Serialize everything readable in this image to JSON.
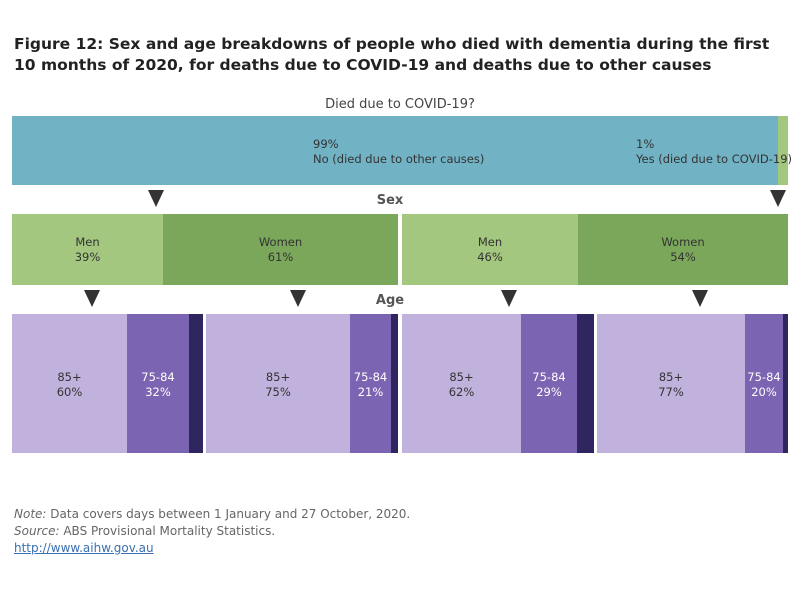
{
  "title": "Figure 12: Sex and age breakdowns of people who died with dementia during the first 10 months of 2020, for deaths due to COVID-19 and deaths due to other causes",
  "colors": {
    "covid_no": "#72b2c5",
    "covid_yes": "#a3c77e",
    "men": "#a3c77e",
    "women": "#7ba75a",
    "age_85": "#c1b2dd",
    "age_75": "#7b64b1",
    "age_young": "#2f2660"
  },
  "chart_data": {
    "type": "bar",
    "levels": [
      {
        "header": "Died due to COVID-19?",
        "segments": [
          {
            "name": "No (died due to other causes)",
            "pct_label": "99%",
            "value": 99
          },
          {
            "name": "Yes (died due to COVID-19)",
            "pct_label": "1%",
            "value": 1
          }
        ]
      },
      {
        "header": "Sex",
        "groups": [
          {
            "parent": "No (died due to other causes)",
            "segments": [
              {
                "name": "Men",
                "pct_label": "39%",
                "value": 39
              },
              {
                "name": "Women",
                "pct_label": "61%",
                "value": 61
              }
            ]
          },
          {
            "parent": "Yes (died due to COVID-19)",
            "segments": [
              {
                "name": "Men",
                "pct_label": "46%",
                "value": 46
              },
              {
                "name": "Women",
                "pct_label": "54%",
                "value": 54
              }
            ]
          }
        ]
      },
      {
        "header": "Age",
        "groups": [
          {
            "parent": "No / Men",
            "segments": [
              {
                "name": "85+",
                "pct_label": "60%",
                "value": 60
              },
              {
                "name": "75-84",
                "pct_label": "32%",
                "value": 32
              },
              {
                "name": "",
                "pct_label": "",
                "value": 8
              }
            ]
          },
          {
            "parent": "No / Women",
            "segments": [
              {
                "name": "85+",
                "pct_label": "75%",
                "value": 75
              },
              {
                "name": "75-84",
                "pct_label": "21%",
                "value": 21
              },
              {
                "name": "",
                "pct_label": "",
                "value": 4
              }
            ]
          },
          {
            "parent": "Yes / Men",
            "segments": [
              {
                "name": "85+",
                "pct_label": "62%",
                "value": 62
              },
              {
                "name": "75-84",
                "pct_label": "29%",
                "value": 29
              },
              {
                "name": "",
                "pct_label": "",
                "value": 9
              }
            ]
          },
          {
            "parent": "Yes / Women",
            "segments": [
              {
                "name": "85+",
                "pct_label": "77%",
                "value": 77
              },
              {
                "name": "75-84",
                "pct_label": "20%",
                "value": 20
              },
              {
                "name": "",
                "pct_label": "",
                "value": 3
              }
            ]
          }
        ]
      }
    ]
  },
  "notes": {
    "note_label": "Note:",
    "note_text": " Data covers days between 1 January and 27 October, 2020.",
    "source_label": "Source:",
    "source_text": " ABS Provisional Mortality Statistics.",
    "link": "http://www.aihw.gov.au"
  }
}
